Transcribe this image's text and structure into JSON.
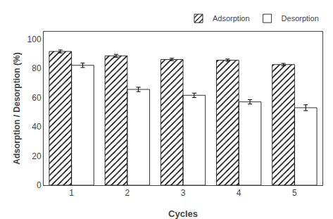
{
  "chart_data": {
    "type": "bar",
    "xlabel": "Cycles",
    "ylabel": "Adsorption / Desorption (%)",
    "categories": [
      "1",
      "2",
      "3",
      "4",
      "5"
    ],
    "series": [
      {
        "name": "Adsorption",
        "color": "#d0d0d0",
        "values": [
          91.5,
          88.5,
          86.0,
          85.5,
          82.5
        ],
        "errors": [
          1.0,
          1.0,
          0.8,
          0.8,
          0.8
        ]
      },
      {
        "name": "Desorption",
        "color": "#0000cc",
        "values": [
          82.0,
          65.5,
          61.5,
          57.0,
          53.0
        ],
        "errors": [
          1.5,
          1.5,
          1.5,
          1.5,
          2.0
        ]
      }
    ],
    "ylim": [
      0,
      105
    ],
    "yticks": [
      0,
      20,
      40,
      60,
      80,
      100
    ],
    "grid": false,
    "legend": "upper right"
  }
}
